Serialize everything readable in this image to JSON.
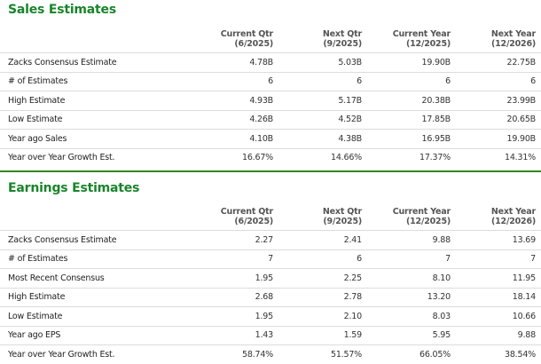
{
  "sales": {
    "title": "Sales Estimates",
    "columns": [
      {
        "line1": "Current Qtr",
        "line2": "(6/2025)"
      },
      {
        "line1": "Next Qtr",
        "line2": "(9/2025)"
      },
      {
        "line1": "Current Year",
        "line2": "(12/2025)"
      },
      {
        "line1": "Next Year",
        "line2": "(12/2026)"
      }
    ],
    "rows": [
      {
        "label": "Zacks Consensus Estimate",
        "values": [
          "4.78B",
          "5.03B",
          "19.90B",
          "22.75B"
        ]
      },
      {
        "label": "# of Estimates",
        "values": [
          "6",
          "6",
          "6",
          "6"
        ]
      },
      {
        "label": "High Estimate",
        "values": [
          "4.93B",
          "5.17B",
          "20.38B",
          "23.99B"
        ]
      },
      {
        "label": "Low Estimate",
        "values": [
          "4.26B",
          "4.52B",
          "17.85B",
          "20.65B"
        ]
      },
      {
        "label": "Year ago Sales",
        "values": [
          "4.10B",
          "4.38B",
          "16.95B",
          "19.90B"
        ]
      },
      {
        "label": "Year over Year Growth Est.",
        "values": [
          "16.67%",
          "14.66%",
          "17.37%",
          "14.31%"
        ]
      }
    ]
  },
  "earnings": {
    "title": "Earnings Estimates",
    "columns": [
      {
        "line1": "Current Qtr",
        "line2": "(6/2025)"
      },
      {
        "line1": "Next Qtr",
        "line2": "(9/2025)"
      },
      {
        "line1": "Current Year",
        "line2": "(12/2025)"
      },
      {
        "line1": "Next Year",
        "line2": "(12/2026)"
      }
    ],
    "rows": [
      {
        "label": "Zacks Consensus Estimate",
        "values": [
          "2.27",
          "2.41",
          "9.88",
          "13.69"
        ]
      },
      {
        "label": "# of Estimates",
        "values": [
          "7",
          "6",
          "7",
          "7"
        ]
      },
      {
        "label": "Most Recent Consensus",
        "values": [
          "1.95",
          "2.25",
          "8.10",
          "11.95"
        ]
      },
      {
        "label": "High Estimate",
        "values": [
          "2.68",
          "2.78",
          "13.20",
          "18.14"
        ]
      },
      {
        "label": "Low Estimate",
        "values": [
          "1.95",
          "2.10",
          "8.03",
          "10.66"
        ]
      },
      {
        "label": "Year ago EPS",
        "values": [
          "1.43",
          "1.59",
          "5.95",
          "9.88"
        ]
      },
      {
        "label": "Year over Year Growth Est.",
        "values": [
          "58.74%",
          "51.57%",
          "66.05%",
          "38.54%"
        ]
      }
    ]
  }
}
